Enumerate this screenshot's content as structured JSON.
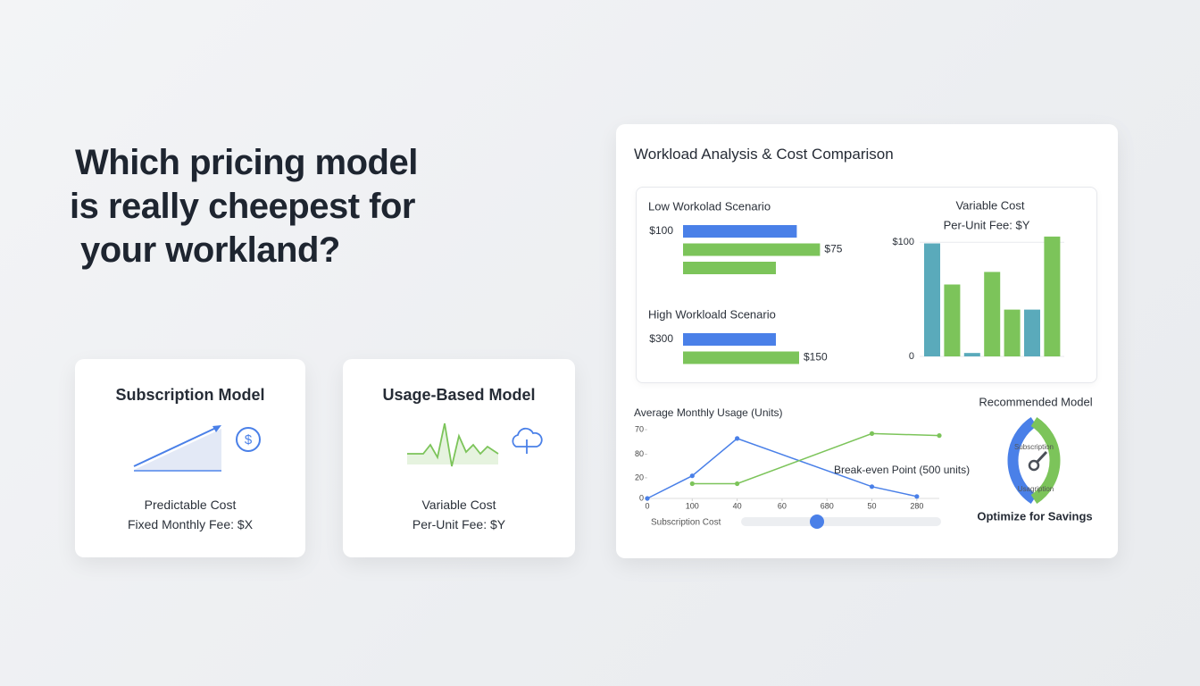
{
  "headline": {
    "lines": [
      "Which pricing model",
      "is really cheepest for",
      "your workland?"
    ]
  },
  "cards": [
    {
      "title": "Subscription Model",
      "label": "Predictable Cost",
      "detail": "Fixed Monthly Fee: $X"
    },
    {
      "title": "Usage-Based Model",
      "label": "Variable Cost",
      "detail": "Per-Unit Fee: $Y"
    }
  ],
  "panel": {
    "title": "Workload Analysis & Cost Comparison"
  },
  "chart_data": [
    {
      "type": "hbar",
      "groups": [
        {
          "title": "Low Workolad Scenario",
          "values": [
            49,
            59,
            40
          ],
          "colors": [
            "#4a80e8",
            "#7cc45a",
            "#7cc45a"
          ],
          "annotations": [
            "$100",
            "$75"
          ]
        },
        {
          "title": "High Workloald Scenario",
          "values": [
            40,
            50
          ],
          "colors": [
            "#4a80e8",
            "#7cc45a"
          ],
          "annotations": [
            "$300",
            "$150"
          ]
        }
      ]
    },
    {
      "type": "bar",
      "title": "Variable Cost",
      "subtitle": "Per-Unit Fee: $Y",
      "values": [
        99,
        63,
        3,
        74,
        41,
        41,
        105
      ],
      "colors": [
        "#5aaabb",
        "#7cc45a",
        "#5aaabb",
        "#7cc45a",
        "#7cc45a",
        "#5aaabb",
        "#7cc45a"
      ],
      "ylim": [
        0,
        108
      ],
      "yticks": [
        0,
        {
          "value": 100,
          "label": "$100"
        }
      ],
      "grid": true
    },
    {
      "type": "line",
      "title": "Average Monthly Usage (Units)",
      "xlim": [
        0,
        6.5
      ],
      "xticks": [
        {
          "value": 0,
          "label": "0"
        },
        {
          "value": 1,
          "label": "100"
        },
        {
          "value": 2,
          "label": "40"
        },
        {
          "value": 3,
          "label": "60"
        },
        {
          "value": 4,
          "label": "680"
        },
        {
          "value": 5,
          "label": "50"
        },
        {
          "value": 6,
          "label": "280"
        }
      ],
      "ylim": [
        0,
        70
      ],
      "yticks": [
        0,
        {
          "value": 21,
          "label": "20"
        },
        {
          "value": 45,
          "label": "80"
        },
        70
      ],
      "series": [
        {
          "color": "#4a80e8",
          "x": [
            0,
            1,
            2,
            5,
            6
          ],
          "values": [
            0,
            23,
            61,
            12,
            2
          ]
        },
        {
          "color": "#7cc45a",
          "x": [
            1,
            2,
            5,
            6.5
          ],
          "values": [
            15,
            15,
            66,
            64
          ]
        }
      ],
      "annotation": "Break-even Point (500 units)",
      "slider_label": "Subscription Cost"
    }
  ],
  "gauge": {
    "title": "Recommended Model",
    "labels": [
      "Subscription",
      "Usagription"
    ],
    "footer": "Optimize for Savings"
  }
}
